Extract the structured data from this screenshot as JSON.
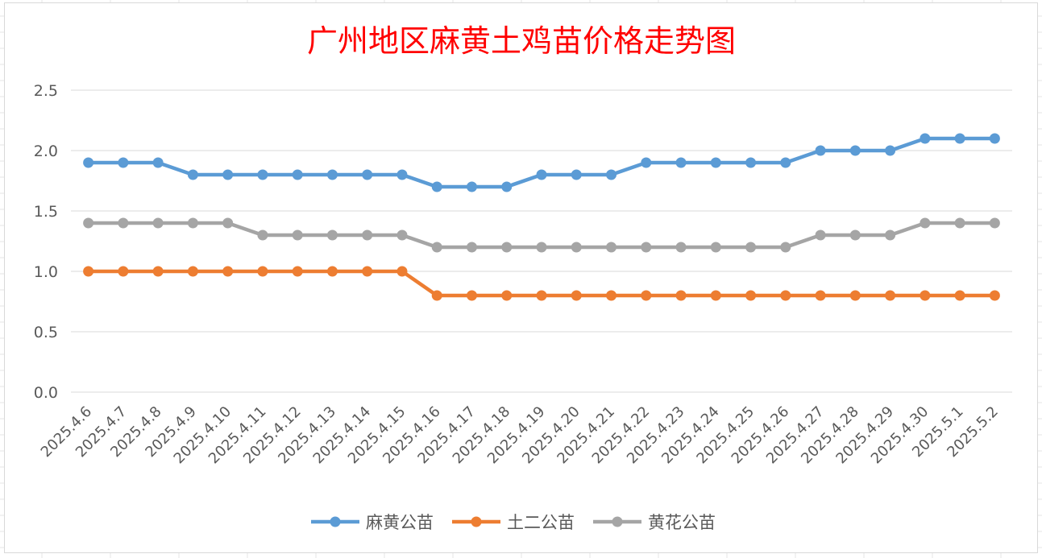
{
  "chart_data": {
    "type": "line",
    "title": "广州地区麻黄土鸡苗价格走势图",
    "xlabel": "",
    "ylabel": "",
    "ylim": [
      0,
      2.5
    ],
    "yticks": [
      "0.0",
      "0.5",
      "1.0",
      "1.5",
      "2.0",
      "2.5"
    ],
    "grid": true,
    "legend_position": "bottom",
    "categories": [
      "2025.4.6",
      "2025.4.7",
      "2025.4.8",
      "2025.4.9",
      "2025.4.10",
      "2025.4.11",
      "2025.4.12",
      "2025.4.13",
      "2025.4.14",
      "2025.4.15",
      "2025.4.16",
      "2025.4.17",
      "2025.4.18",
      "2025.4.19",
      "2025.4.20",
      "2025.4.21",
      "2025.4.22",
      "2025.4.23",
      "2025.4.24",
      "2025.4.25",
      "2025.4.26",
      "2025.4.27",
      "2025.4.28",
      "2025.4.29",
      "2025.4.30",
      "2025.5.1",
      "2025.5.2"
    ],
    "series": [
      {
        "name": "麻黄公苗",
        "color": "#5b9bd5",
        "values": [
          1.9,
          1.9,
          1.9,
          1.8,
          1.8,
          1.8,
          1.8,
          1.8,
          1.8,
          1.8,
          1.7,
          1.7,
          1.7,
          1.8,
          1.8,
          1.8,
          1.9,
          1.9,
          1.9,
          1.9,
          1.9,
          2.0,
          2.0,
          2.0,
          2.1,
          2.1,
          2.1
        ]
      },
      {
        "name": "土二公苗",
        "color": "#ed7d31",
        "values": [
          1.0,
          1.0,
          1.0,
          1.0,
          1.0,
          1.0,
          1.0,
          1.0,
          1.0,
          1.0,
          0.8,
          0.8,
          0.8,
          0.8,
          0.8,
          0.8,
          0.8,
          0.8,
          0.8,
          0.8,
          0.8,
          0.8,
          0.8,
          0.8,
          0.8,
          0.8,
          0.8
        ]
      },
      {
        "name": "黄花公苗",
        "color": "#a5a5a5",
        "values": [
          1.4,
          1.4,
          1.4,
          1.4,
          1.4,
          1.3,
          1.3,
          1.3,
          1.3,
          1.3,
          1.2,
          1.2,
          1.2,
          1.2,
          1.2,
          1.2,
          1.2,
          1.2,
          1.2,
          1.2,
          1.2,
          1.3,
          1.3,
          1.3,
          1.4,
          1.4,
          1.4
        ]
      }
    ]
  }
}
